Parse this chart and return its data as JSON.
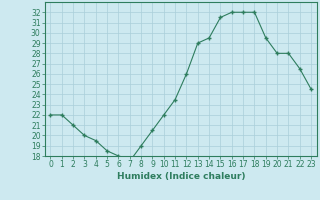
{
  "title": "",
  "xlabel": "Humidex (Indice chaleur)",
  "ylabel": "",
  "x": [
    0,
    1,
    2,
    3,
    4,
    5,
    6,
    7,
    8,
    9,
    10,
    11,
    12,
    13,
    14,
    15,
    16,
    17,
    18,
    19,
    20,
    21,
    22,
    23
  ],
  "y": [
    22,
    22,
    21,
    20,
    19.5,
    18.5,
    18,
    17.5,
    19,
    20.5,
    22,
    23.5,
    26,
    29,
    29.5,
    31.5,
    32,
    32,
    32,
    29.5,
    28,
    28,
    26.5,
    24.5
  ],
  "ylim": [
    18,
    33
  ],
  "xlim": [
    -0.5,
    23.5
  ],
  "yticks": [
    18,
    19,
    20,
    21,
    22,
    23,
    24,
    25,
    26,
    27,
    28,
    29,
    30,
    31,
    32
  ],
  "xticks": [
    0,
    1,
    2,
    3,
    4,
    5,
    6,
    7,
    8,
    9,
    10,
    11,
    12,
    13,
    14,
    15,
    16,
    17,
    18,
    19,
    20,
    21,
    22,
    23
  ],
  "line_color": "#2e7d5e",
  "marker": "+",
  "markersize": 3,
  "linewidth": 0.8,
  "bg_color": "#cde9f0",
  "grid_color": "#aacfda",
  "tick_label_color": "#2e7d5e",
  "xlabel_color": "#2e7d5e",
  "tick_fontsize": 5.5,
  "xlabel_fontsize": 6.5,
  "xlabel_fontweight": "bold"
}
